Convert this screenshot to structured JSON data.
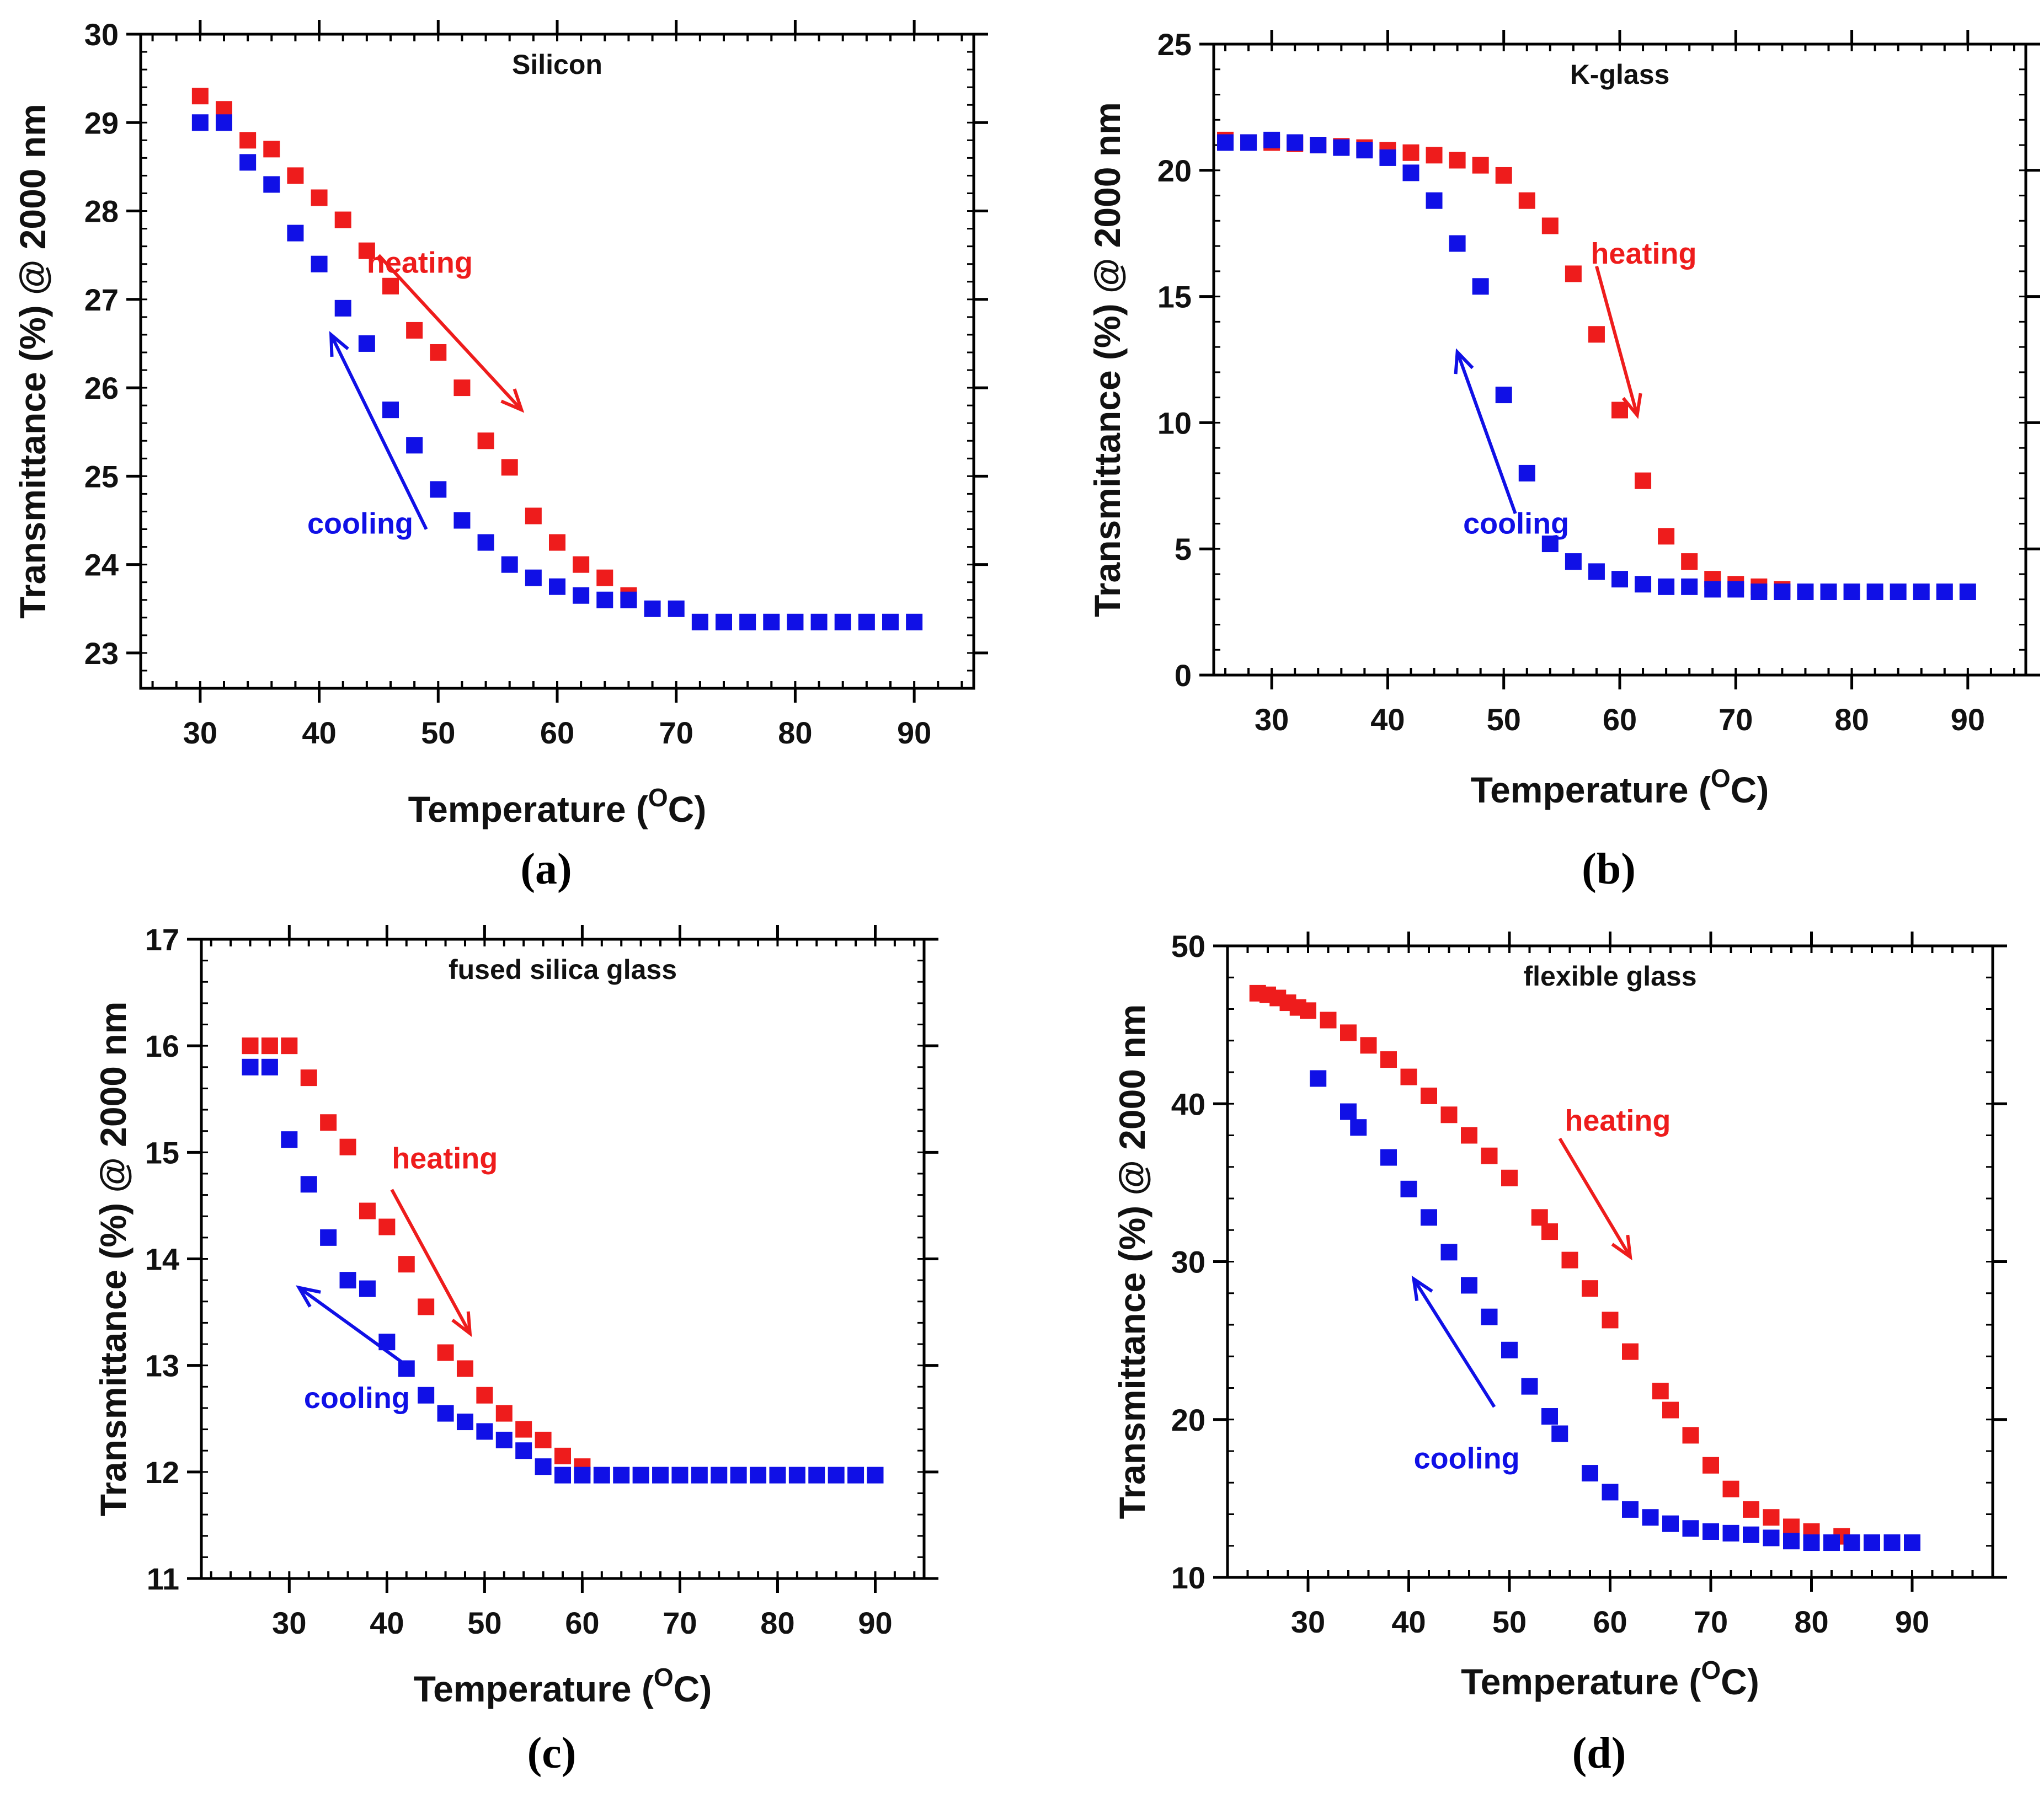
{
  "colors": {
    "heating": "#ee1c1c",
    "cooling": "#1010e6",
    "axis": "#000000"
  },
  "chart_data": [
    {
      "type": "scatter",
      "panel_label": "(a)",
      "title": "Silicon",
      "xlabel": "Temperature (",
      "xlabel_sup": "O",
      "xlabel_end": "C)",
      "ylabel": "Transmittance (%) @ 2000 nm",
      "xlim": [
        25,
        95
      ],
      "ylim": [
        22.6,
        30
      ],
      "xticks": [
        30,
        40,
        50,
        60,
        70,
        80,
        90
      ],
      "yticks": [
        23,
        24,
        25,
        26,
        27,
        28,
        29,
        30
      ],
      "heating_label": "heating",
      "cooling_label": "cooling",
      "heating_arrow": {
        "from": [
          45,
          27.5
        ],
        "to": [
          57,
          25.75
        ]
      },
      "cooling_arrow": {
        "from": [
          49,
          24.4
        ],
        "to": [
          41,
          26.6
        ]
      },
      "heating_label_at": [
        44,
        27.3
      ],
      "cooling_label_at": [
        39,
        24.35
      ],
      "series": [
        {
          "name": "heating",
          "x": [
            30,
            32,
            34,
            36,
            38,
            40,
            42,
            44,
            46,
            48,
            50,
            52,
            54,
            56,
            58,
            60,
            62,
            64,
            66
          ],
          "y": [
            29.3,
            29.15,
            28.8,
            28.7,
            28.4,
            28.15,
            27.9,
            27.55,
            27.15,
            26.65,
            26.4,
            26.0,
            25.4,
            25.1,
            24.55,
            24.25,
            24.0,
            23.85,
            23.65
          ]
        },
        {
          "name": "cooling",
          "x": [
            30,
            32,
            34,
            36,
            38,
            40,
            42,
            44,
            46,
            48,
            50,
            52,
            54,
            56,
            58,
            60,
            62,
            64,
            66,
            68,
            70,
            72,
            74,
            76,
            78,
            80,
            82,
            84,
            86,
            88,
            90
          ],
          "y": [
            29.0,
            29.0,
            28.55,
            28.3,
            27.75,
            27.4,
            26.9,
            26.5,
            25.75,
            25.35,
            24.85,
            24.5,
            24.25,
            24.0,
            23.85,
            23.75,
            23.65,
            23.6,
            23.6,
            23.5,
            23.5,
            23.35,
            23.35,
            23.35,
            23.35,
            23.35,
            23.35,
            23.35,
            23.35,
            23.35,
            23.35
          ]
        }
      ]
    },
    {
      "type": "scatter",
      "panel_label": "(b)",
      "title": "K-glass",
      "xlabel": "Temperature (",
      "xlabel_sup": "O",
      "xlabel_end": "C)",
      "ylabel": "Transmittance (%) @ 2000 nm",
      "xlim": [
        25,
        95
      ],
      "ylim": [
        0,
        25
      ],
      "xticks": [
        30,
        40,
        50,
        60,
        70,
        80,
        90
      ],
      "yticks": [
        0,
        5,
        10,
        15,
        20,
        25
      ],
      "heating_label": "heating",
      "cooling_label": "cooling",
      "heating_arrow": {
        "from": [
          58,
          16.2
        ],
        "to": [
          61.5,
          10.3
        ]
      },
      "cooling_arrow": {
        "from": [
          51,
          6.4
        ],
        "to": [
          46,
          12.8
        ]
      },
      "heating_label_at": [
        57.5,
        16.3
      ],
      "cooling_label_at": [
        46.5,
        5.6
      ],
      "series": [
        {
          "name": "heating",
          "x": [
            26,
            28,
            30,
            32,
            34,
            36,
            38,
            40,
            42,
            44,
            46,
            48,
            50,
            52,
            54,
            56,
            58,
            60,
            62,
            64,
            66,
            68,
            70,
            72,
            74
          ],
          "y": [
            21.2,
            21.1,
            21.1,
            21.05,
            21.0,
            20.95,
            20.9,
            20.8,
            20.7,
            20.6,
            20.4,
            20.2,
            19.8,
            18.8,
            17.8,
            15.9,
            13.5,
            10.5,
            7.7,
            5.5,
            4.5,
            3.8,
            3.6,
            3.5,
            3.4
          ]
        },
        {
          "name": "cooling",
          "x": [
            26,
            28,
            30,
            32,
            34,
            36,
            38,
            40,
            42,
            44,
            46,
            48,
            50,
            52,
            54,
            56,
            58,
            60,
            62,
            64,
            66,
            68,
            70,
            72,
            74,
            76,
            78,
            80,
            82,
            84,
            86,
            88,
            90
          ],
          "y": [
            21.1,
            21.1,
            21.2,
            21.1,
            21.0,
            20.9,
            20.8,
            20.5,
            19.9,
            18.8,
            17.1,
            15.4,
            11.1,
            8.0,
            5.2,
            4.5,
            4.1,
            3.8,
            3.6,
            3.5,
            3.5,
            3.4,
            3.4,
            3.3,
            3.3,
            3.3,
            3.3,
            3.3,
            3.3,
            3.3,
            3.3,
            3.3,
            3.3
          ]
        }
      ]
    },
    {
      "type": "scatter",
      "panel_label": "(c)",
      "title": "fused silica glass",
      "xlabel": "Temperature (",
      "xlabel_sup": "O",
      "xlabel_end": "C)",
      "ylabel": "Transmittance (%) @ 2000 nm",
      "xlim": [
        21,
        95
      ],
      "ylim": [
        11,
        17
      ],
      "xticks": [
        30,
        40,
        50,
        60,
        70,
        80,
        90
      ],
      "yticks": [
        11,
        12,
        13,
        14,
        15,
        16,
        17
      ],
      "heating_label": "heating",
      "cooling_label": "cooling",
      "heating_arrow": {
        "from": [
          40.5,
          14.65
        ],
        "to": [
          48.5,
          13.3
        ]
      },
      "cooling_arrow": {
        "from": [
          42,
          13.0
        ],
        "to": [
          31,
          13.73
        ]
      },
      "heating_label_at": [
        40.5,
        14.85
      ],
      "cooling_label_at": [
        31.5,
        12.6
      ],
      "series": [
        {
          "name": "heating",
          "x": [
            26,
            28,
            30,
            32,
            34,
            36,
            38,
            40,
            42,
            44,
            46,
            48,
            50,
            52,
            54,
            56,
            58,
            60
          ],
          "y": [
            16.0,
            16.0,
            16.0,
            15.7,
            15.28,
            15.05,
            14.45,
            14.3,
            13.95,
            13.55,
            13.12,
            12.97,
            12.72,
            12.55,
            12.4,
            12.3,
            12.15,
            12.05
          ]
        },
        {
          "name": "cooling",
          "x": [
            26,
            28,
            30,
            32,
            34,
            36,
            38,
            40,
            42,
            44,
            46,
            48,
            50,
            52,
            54,
            56,
            58,
            60,
            62,
            64,
            66,
            68,
            70,
            72,
            74,
            76,
            78,
            80,
            82,
            84,
            86,
            88,
            90
          ],
          "y": [
            15.8,
            15.8,
            15.12,
            14.7,
            14.2,
            13.8,
            13.72,
            13.22,
            12.97,
            12.72,
            12.55,
            12.47,
            12.38,
            12.3,
            12.2,
            12.05,
            11.97,
            11.97,
            11.97,
            11.97,
            11.97,
            11.97,
            11.97,
            11.97,
            11.97,
            11.97,
            11.97,
            11.97,
            11.97,
            11.97,
            11.97,
            11.97,
            11.97
          ]
        }
      ]
    },
    {
      "type": "scatter",
      "panel_label": "(d)",
      "title": "flexible glass",
      "xlabel": "Temperature (",
      "xlabel_sup": "O",
      "xlabel_end": "C)",
      "ylabel": "Transmittance (%) @ 2000 nm",
      "xlim": [
        22,
        98
      ],
      "ylim": [
        10,
        50
      ],
      "xticks": [
        30,
        40,
        50,
        60,
        70,
        80,
        90
      ],
      "yticks": [
        10,
        20,
        30,
        40,
        50
      ],
      "heating_label": "heating",
      "cooling_label": "cooling",
      "heating_arrow": {
        "from": [
          55,
          37.8
        ],
        "to": [
          62,
          30.3
        ]
      },
      "cooling_arrow": {
        "from": [
          48.5,
          20.8
        ],
        "to": [
          40.5,
          28.9
        ]
      },
      "heating_label_at": [
        55.5,
        38.3
      ],
      "cooling_label_at": [
        40.5,
        16.9
      ],
      "series": [
        {
          "name": "heating",
          "x": [
            25,
            26,
            27,
            28,
            29,
            30,
            32,
            34,
            36,
            38,
            40,
            42,
            44,
            46,
            48,
            50,
            53,
            54,
            56,
            58,
            60,
            62,
            65,
            66,
            68,
            70,
            72,
            74,
            76,
            78,
            80,
            83
          ],
          "y": [
            47.0,
            46.9,
            46.7,
            46.4,
            46.1,
            45.9,
            45.3,
            44.5,
            43.7,
            42.8,
            41.7,
            40.5,
            39.3,
            38.0,
            36.7,
            35.3,
            32.8,
            31.9,
            30.1,
            28.3,
            26.3,
            24.3,
            21.8,
            20.6,
            19.0,
            17.1,
            15.6,
            14.3,
            13.8,
            13.2,
            12.9,
            12.6
          ]
        },
        {
          "name": "cooling",
          "x": [
            31,
            34,
            35,
            38,
            40,
            42,
            44,
            46,
            48,
            50,
            52,
            54,
            55,
            58,
            60,
            62,
            64,
            66,
            68,
            70,
            72,
            74,
            76,
            78,
            80,
            82,
            84,
            86,
            88,
            90
          ],
          "y": [
            41.6,
            39.5,
            38.5,
            36.6,
            34.6,
            32.8,
            30.6,
            28.5,
            26.5,
            24.4,
            22.1,
            20.2,
            19.1,
            16.6,
            15.4,
            14.3,
            13.8,
            13.4,
            13.1,
            12.9,
            12.8,
            12.7,
            12.5,
            12.3,
            12.2,
            12.2,
            12.2,
            12.2,
            12.2,
            12.2
          ]
        }
      ]
    }
  ]
}
